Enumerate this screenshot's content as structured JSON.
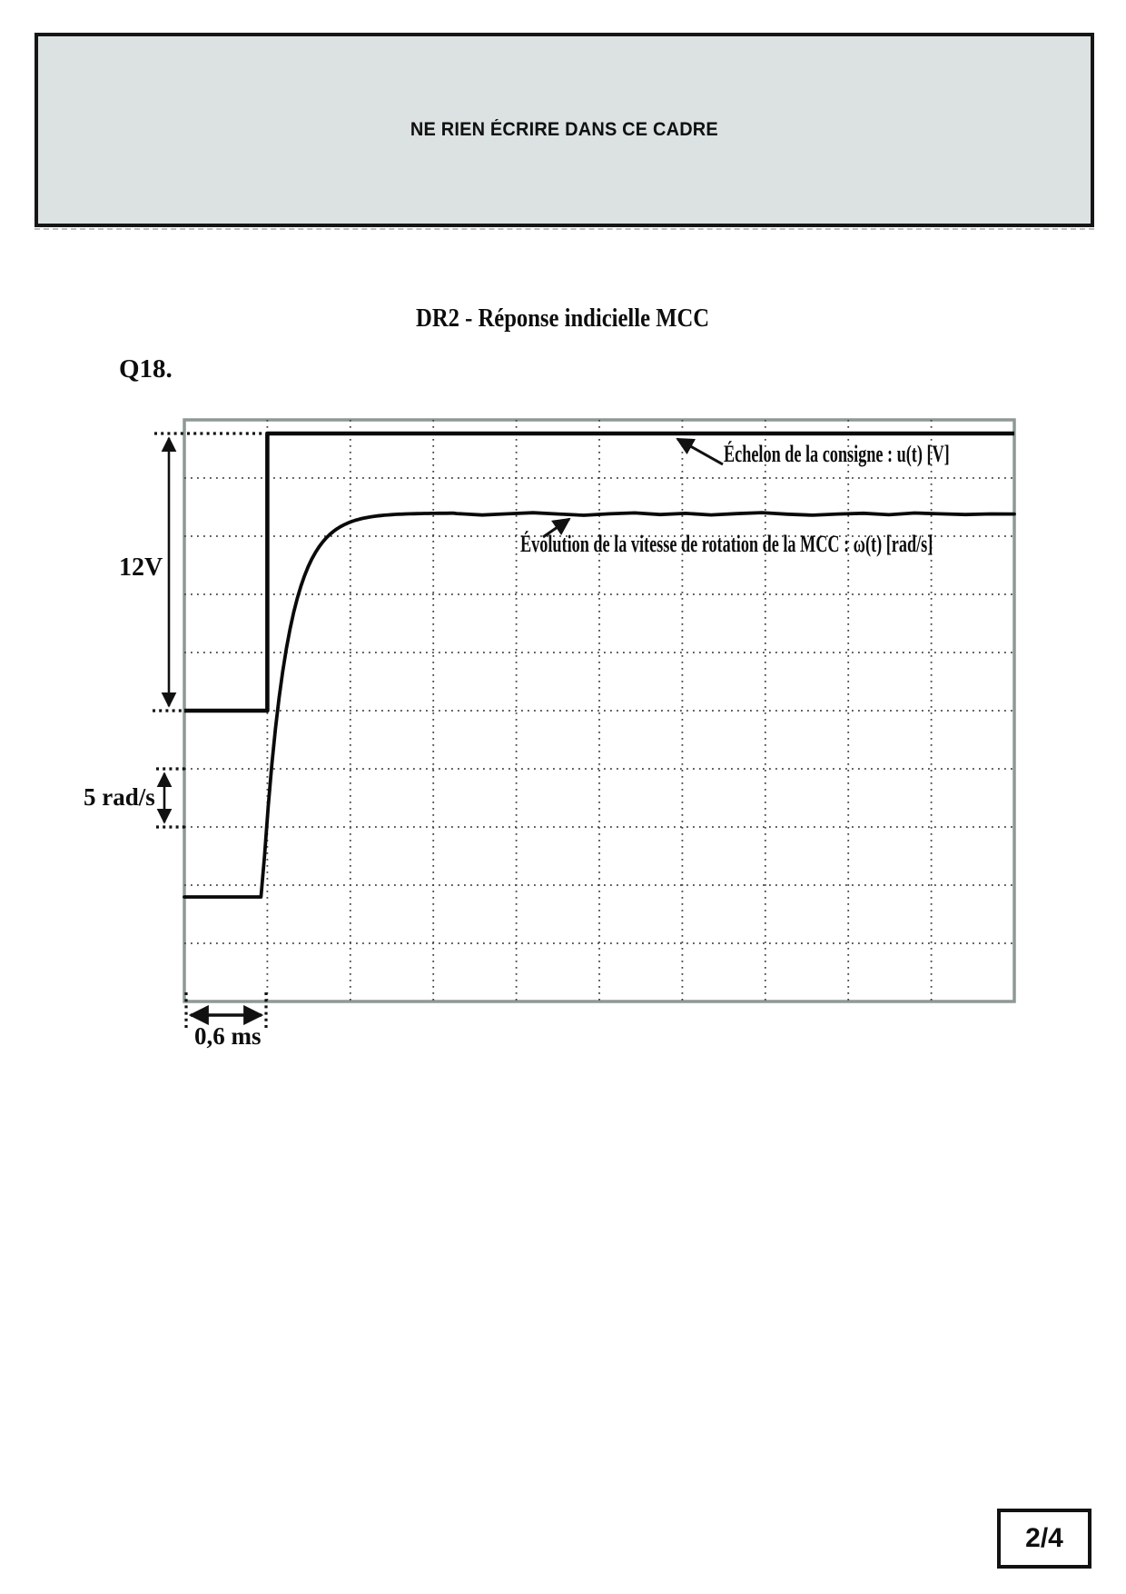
{
  "page": {
    "frame_notice": "NE RIEN ÉCRIRE DANS CE CADRE",
    "title": "DR2 - Réponse indicielle MCC",
    "question_label": "Q18.",
    "page_number": "2/4"
  },
  "chart_data": {
    "type": "line",
    "title": "DR2 - Réponse indicielle MCC",
    "grid": {
      "x_divisions": 10,
      "y_divisions": 10,
      "gridline_style": "dotted",
      "grid_on": true
    },
    "x_axis": {
      "unit": "ms",
      "per_division": 0.6,
      "range_ms": [
        0,
        6
      ]
    },
    "annotations": {
      "step_amplitude_label": "12V",
      "speed_scale_label": "5 rad/s",
      "time_scale_label": "0,6 ms",
      "u_label": "Échelon de la consigne : u(t) [V]",
      "omega_label": "Évolution de la vitesse de rotation de la MCC : ω(t) [rad/s]"
    },
    "series": [
      {
        "name": "u(t)",
        "label": "Échelon de la consigne : u(t) [V]",
        "shape": "step",
        "unit": "V",
        "initial": 0,
        "final": 12,
        "step_time_ms": 0.6,
        "points_ms_V": [
          [
            0,
            0
          ],
          [
            0.6,
            0
          ],
          [
            0.6,
            12
          ],
          [
            6,
            12
          ]
        ]
      },
      {
        "name": "ω(t)",
        "label": "Évolution de la vitesse de rotation de la MCC : ω(t) [rad/s]",
        "shape": "first_order_step_response",
        "unit": "rad/s",
        "initial": 0,
        "final": 33,
        "start_time_ms": 0.6,
        "time_constant_ms": 0.17,
        "scale_rad_s_per_division": 5,
        "sample_points_ms_rad_s": [
          [
            0,
            0
          ],
          [
            0.6,
            0
          ],
          [
            0.7,
            14
          ],
          [
            0.8,
            21
          ],
          [
            1.0,
            28
          ],
          [
            1.2,
            31
          ],
          [
            1.5,
            32.5
          ],
          [
            1.8,
            32.9
          ],
          [
            2.4,
            33
          ],
          [
            6,
            33
          ]
        ]
      }
    ]
  }
}
